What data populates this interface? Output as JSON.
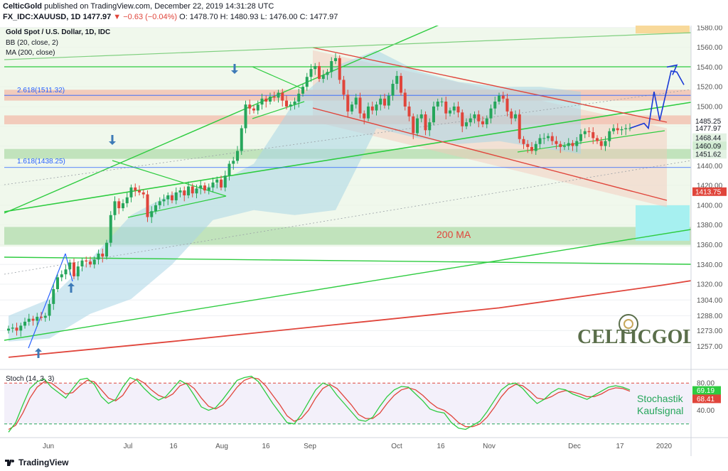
{
  "header": {
    "line1_author": "CelticGold",
    "line1_rest": "published on TradingView.com, December 22, 2019 14:31:28 UTC",
    "symbol": "FX_IDC:XAUUSD, 1D",
    "last": "1477.97",
    "change": "▼ −0.63 (−0.04%)",
    "o": "O: 1478.70",
    "h": "H: 1480.93",
    "l": "L: 1476.00",
    "c": "C: 1477.97"
  },
  "legend": {
    "title": "Gold Spot / U.S. Dollar, 1D, IDC",
    "bb": "BB (20, close, 2)",
    "ma": "MA (200, close)"
  },
  "annotations": {
    "fib_2618": "2.618(1511.32)",
    "fib_1618": "1.618(1438.25)",
    "ma_label": "200 MA",
    "stoch_label_1": "Stochastik",
    "stoch_label_2": "Kaufsignal",
    "brand": "CELTICGOLD"
  },
  "stoch_panel": {
    "title": "Stoch (14, 3, 3)",
    "ticks": [
      "80.00",
      "40.00"
    ],
    "k_value": "69.19",
    "d_value": "68.41"
  },
  "price_badges": [
    {
      "text": "1485.25",
      "value": 1485.25,
      "bg": "#ffffff",
      "fg": "#131722"
    },
    {
      "text": "1477.97",
      "value": 1477.97,
      "bg": "#ffffff",
      "fg": "#131722"
    },
    {
      "text": "1468.44",
      "value": 1468.44,
      "bg": "#e3f2e3",
      "fg": "#131722"
    },
    {
      "text": "1460.09",
      "value": 1460.09,
      "bg": "#d2ecd2",
      "fg": "#131722"
    },
    {
      "text": "1451.62",
      "value": 1451.62,
      "bg": "#e3f2e3",
      "fg": "#131722"
    },
    {
      "text": "1413.75",
      "value": 1413.75,
      "bg": "#e0453b",
      "fg": "#ffffff"
    }
  ],
  "colors": {
    "up": "#26a65b",
    "down": "#e0453b",
    "bb_fill": "#a9d6e5",
    "trend_green": "#2ecc40",
    "channel_red": "#e0453b",
    "ma": "#e0453b",
    "forecast": "#1a3ad6",
    "stoch_k": "#2ecc40",
    "stoch_d": "#e0453b"
  },
  "chart_data": {
    "type": "candlestick",
    "title": "Gold Spot / U.S. Dollar, 1D, IDC",
    "x_labels": [
      "Jun",
      "Jul",
      "16",
      "Aug",
      "16",
      "Sep",
      "Oct",
      "16",
      "Nov",
      "Dec",
      "17",
      "2020"
    ],
    "y_ticks": [
      1580,
      1560,
      1540,
      1520,
      1500,
      1480,
      1460,
      1440,
      1420,
      1400,
      1380,
      1360,
      1340,
      1320,
      1304,
      1288,
      1273,
      1257
    ],
    "y_range": [
      1238,
      1582
    ],
    "close": [
      1275,
      1276,
      1273,
      1278,
      1282,
      1285,
      1283,
      1287,
      1286,
      1288,
      1300,
      1315,
      1327,
      1330,
      1335,
      1342,
      1328,
      1338,
      1344,
      1343,
      1340,
      1345,
      1351,
      1348,
      1362,
      1390,
      1404,
      1397,
      1402,
      1408,
      1418,
      1415,
      1413,
      1411,
      1388,
      1394,
      1400,
      1404,
      1406,
      1410,
      1405,
      1413,
      1415,
      1410,
      1419,
      1412,
      1417,
      1420,
      1415,
      1418,
      1423,
      1426,
      1418,
      1430,
      1442,
      1445,
      1455,
      1478,
      1502,
      1498,
      1496,
      1502,
      1508,
      1505,
      1510,
      1509,
      1514,
      1506,
      1500,
      1502,
      1505,
      1513,
      1520,
      1530,
      1538,
      1541,
      1528,
      1532,
      1535,
      1546,
      1549,
      1527,
      1512,
      1495,
      1502,
      1509,
      1493,
      1488,
      1500,
      1496,
      1502,
      1508,
      1501,
      1511,
      1523,
      1531,
      1514,
      1500,
      1490,
      1473,
      1488,
      1492,
      1476,
      1484,
      1500,
      1505,
      1505,
      1493,
      1496,
      1500,
      1494,
      1480,
      1484,
      1488,
      1492,
      1485,
      1482,
      1488,
      1498,
      1505,
      1511,
      1508,
      1495,
      1488,
      1492,
      1467,
      1462,
      1459,
      1455,
      1462,
      1468,
      1468,
      1470,
      1465,
      1462,
      1459,
      1460,
      1463,
      1460,
      1465,
      1472,
      1475,
      1474,
      1468,
      1465,
      1460,
      1465,
      1475,
      1478,
      1476,
      1477,
      1478,
      1478
    ],
    "ma200": [
      [
        0,
        1246
      ],
      [
        40,
        1262
      ],
      [
        80,
        1279
      ],
      [
        120,
        1296
      ],
      [
        160,
        1319
      ],
      [
        200,
        1345
      ],
      [
        230,
        1362
      ],
      [
        260,
        1376
      ],
      [
        280,
        1387
      ],
      [
        300,
        1396
      ],
      [
        310,
        1401
      ],
      [
        320,
        1405
      ],
      [
        335,
        1409
      ],
      [
        345,
        1414
      ]
    ],
    "bollinger_band": [
      [
        0,
        1288,
        1262
      ],
      [
        10,
        1305,
        1265
      ],
      [
        20,
        1345,
        1290
      ],
      [
        30,
        1390,
        1305
      ],
      [
        40,
        1412,
        1340
      ],
      [
        50,
        1420,
        1385
      ],
      [
        60,
        1442,
        1395
      ],
      [
        70,
        1505,
        1390
      ],
      [
        80,
        1541,
        1395
      ],
      [
        90,
        1557,
        1478
      ],
      [
        100,
        1536,
        1468
      ],
      [
        110,
        1525,
        1462
      ],
      [
        120,
        1520,
        1465
      ],
      [
        130,
        1520,
        1458
      ],
      [
        140,
        1515,
        1452
      ]
    ],
    "stochastic": {
      "k": [
        8,
        22,
        48,
        72,
        82,
        86,
        74,
        66,
        58,
        72,
        85,
        87,
        78,
        60,
        50,
        56,
        74,
        88,
        84,
        72,
        62,
        55,
        60,
        72,
        84,
        78,
        62,
        45,
        40,
        44,
        56,
        70,
        84,
        88,
        90,
        82,
        66,
        50,
        36,
        22,
        20,
        34,
        52,
        70,
        80,
        76,
        62,
        50,
        38,
        26,
        24,
        30,
        46,
        60,
        70,
        75,
        74,
        64,
        54,
        42,
        38,
        36,
        22,
        14,
        12,
        18,
        24,
        38,
        54,
        70,
        78,
        80,
        72,
        60,
        50,
        56,
        66,
        72,
        70,
        64,
        60,
        56,
        62,
        68,
        74,
        76,
        74,
        70
      ],
      "d": [
        12,
        18,
        36,
        58,
        74,
        82,
        80,
        72,
        64,
        66,
        76,
        84,
        82,
        70,
        58,
        54,
        62,
        78,
        86,
        80,
        70,
        62,
        58,
        64,
        76,
        80,
        72,
        58,
        46,
        42,
        48,
        60,
        74,
        84,
        88,
        86,
        76,
        62,
        48,
        32,
        24,
        28,
        40,
        58,
        72,
        78,
        72,
        60,
        48,
        34,
        28,
        28,
        36,
        50,
        62,
        70,
        73,
        70,
        62,
        52,
        44,
        40,
        32,
        22,
        16,
        16,
        20,
        30,
        44,
        60,
        72,
        78,
        76,
        68,
        58,
        56,
        60,
        66,
        69,
        67,
        64,
        60,
        60,
        64,
        70,
        73,
        72,
        68
      ]
    }
  }
}
